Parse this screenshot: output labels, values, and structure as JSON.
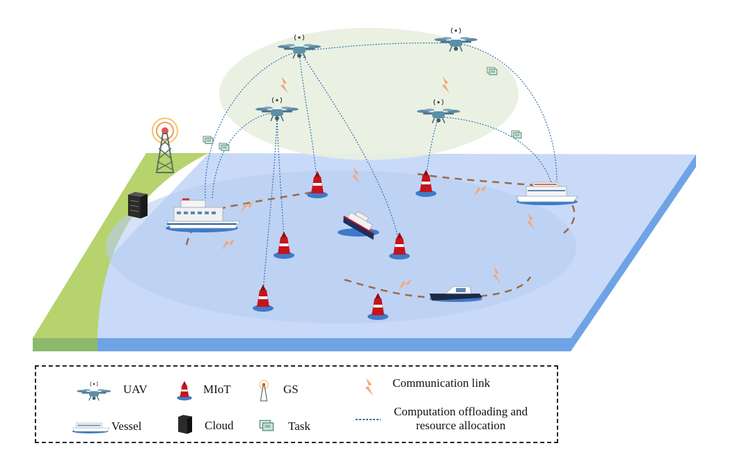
{
  "legend": {
    "uav": "UAV",
    "miot": "MIoT",
    "gs": "GS",
    "comm": "Communication link",
    "vessel": "Vessel",
    "cloud": "Cloud",
    "task": "Task",
    "offload": "Computation offloading and resource allocation"
  },
  "colors": {
    "sea": "#c9daf8",
    "sea_edge": "#6fa3e6",
    "shore": "#b6d36d",
    "uav_zone": "#e8efe0",
    "link_dotted": "#2f6fb0",
    "comm_link": "#f0a77c",
    "trajectory": "#9a6a45",
    "buoy": "#c4151b"
  },
  "icons": {
    "uav": "drone-icon",
    "miot": "buoy-icon",
    "gs": "tower-icon",
    "comm": "lightning-icon",
    "vessel": "ship-icon",
    "cloud": "server-icon",
    "task": "task-stack-icon",
    "offload": "dotted-line-icon"
  }
}
